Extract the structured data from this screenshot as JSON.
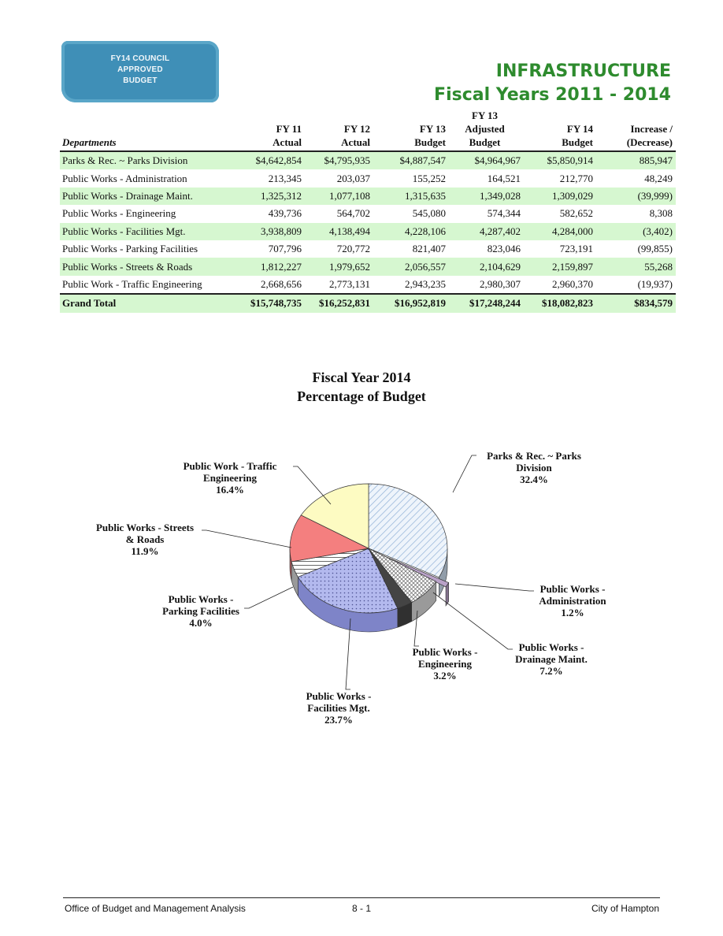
{
  "badge": {
    "line1": "FY14 COUNCIL",
    "line2": "APPROVED",
    "line3": "BUDGET"
  },
  "header": {
    "title": "INFRASTRUCTURE",
    "subtitle": "Fiscal Years 2011 - 2014"
  },
  "table": {
    "columns": [
      {
        "l1": "",
        "l2": "",
        "l3": "Departments"
      },
      {
        "l1": "",
        "l2": "FY 11",
        "l3": "Actual"
      },
      {
        "l1": "",
        "l2": "FY 12",
        "l3": "Actual"
      },
      {
        "l1": "",
        "l2": "FY 13",
        "l3": "Budget"
      },
      {
        "l1": "FY 13",
        "l2": "Adjusted",
        "l3": "Budget"
      },
      {
        "l1": "",
        "l2": "FY 14",
        "l3": "Budget"
      },
      {
        "l1": "",
        "l2": "Increase /",
        "l3": "(Decrease)"
      }
    ],
    "rows": [
      [
        "Parks & Rec. ~ Parks Division",
        "$4,642,854",
        "$4,795,935",
        "$4,887,547",
        "$4,964,967",
        "$5,850,914",
        "885,947"
      ],
      [
        "Public Works - Administration",
        "213,345",
        "203,037",
        "155,252",
        "164,521",
        "212,770",
        "48,249"
      ],
      [
        "Public Works - Drainage Maint.",
        "1,325,312",
        "1,077,108",
        "1,315,635",
        "1,349,028",
        "1,309,029",
        "(39,999)"
      ],
      [
        "Public Works - Engineering",
        "439,736",
        "564,702",
        "545,080",
        "574,344",
        "582,652",
        "8,308"
      ],
      [
        "Public Works - Facilities Mgt.",
        "3,938,809",
        "4,138,494",
        "4,228,106",
        "4,287,402",
        "4,284,000",
        "(3,402)"
      ],
      [
        "Public Works - Parking Facilities",
        "707,796",
        "720,772",
        "821,407",
        "823,046",
        "723,191",
        "(99,855)"
      ],
      [
        "Public Works - Streets & Roads",
        "1,812,227",
        "1,979,652",
        "2,056,557",
        "2,104,629",
        "2,159,897",
        "55,268"
      ],
      [
        "Public Work - Traffic Engineering",
        "2,668,656",
        "2,773,131",
        "2,943,235",
        "2,980,307",
        "2,960,370",
        "(19,937)"
      ]
    ],
    "total": [
      "Grand Total",
      "$15,748,735",
      "$16,252,831",
      "$16,952,819",
      "$17,248,244",
      "$18,082,823",
      "$834,579"
    ]
  },
  "chart_data": {
    "type": "pie",
    "title": "Fiscal Year 2014 Percentage of Budget",
    "title_lines": [
      "Fiscal Year 2014",
      "Percentage of Budget"
    ],
    "slices": [
      {
        "label_lines": [
          "Parks & Rec. ~ Parks",
          "Division"
        ],
        "pct_label": "32.4%",
        "value": 32.4,
        "color": "#cfe0f2",
        "pattern": "diag"
      },
      {
        "label_lines": [
          "Public Works -",
          "Administration"
        ],
        "pct_label": "1.2%",
        "value": 1.2,
        "color": "#b9a2c8",
        "pattern": "solid"
      },
      {
        "label_lines": [
          "Public Works -",
          "Drainage Maint."
        ],
        "pct_label": "7.2%",
        "value": 7.2,
        "color": "#ffffff",
        "pattern": "cross"
      },
      {
        "label_lines": [
          "Public Works -",
          "Engineering"
        ],
        "pct_label": "3.2%",
        "value": 3.2,
        "color": "#444444",
        "pattern": "solid"
      },
      {
        "label_lines": [
          "Public Works -",
          "Facilities Mgt."
        ],
        "pct_label": "23.7%",
        "value": 23.7,
        "color": "#b3b9ee",
        "pattern": "dots"
      },
      {
        "label_lines": [
          "Public Works -",
          "Parking Facilities"
        ],
        "pct_label": "4.0%",
        "value": 4.0,
        "color": "#ffffff",
        "pattern": "hatch"
      },
      {
        "label_lines": [
          "Public Works - Streets",
          "& Roads"
        ],
        "pct_label": "11.9%",
        "value": 11.9,
        "color": "#f47f7f",
        "pattern": "solid"
      },
      {
        "label_lines": [
          "Public Work - Traffic",
          "Engineering"
        ],
        "pct_label": "16.4%",
        "value": 16.4,
        "color": "#fdfbc2",
        "pattern": "solid"
      }
    ]
  },
  "footer": {
    "left": "Office of Budget and Management Analysis",
    "center": "8 - 1",
    "right": "City of Hampton"
  }
}
